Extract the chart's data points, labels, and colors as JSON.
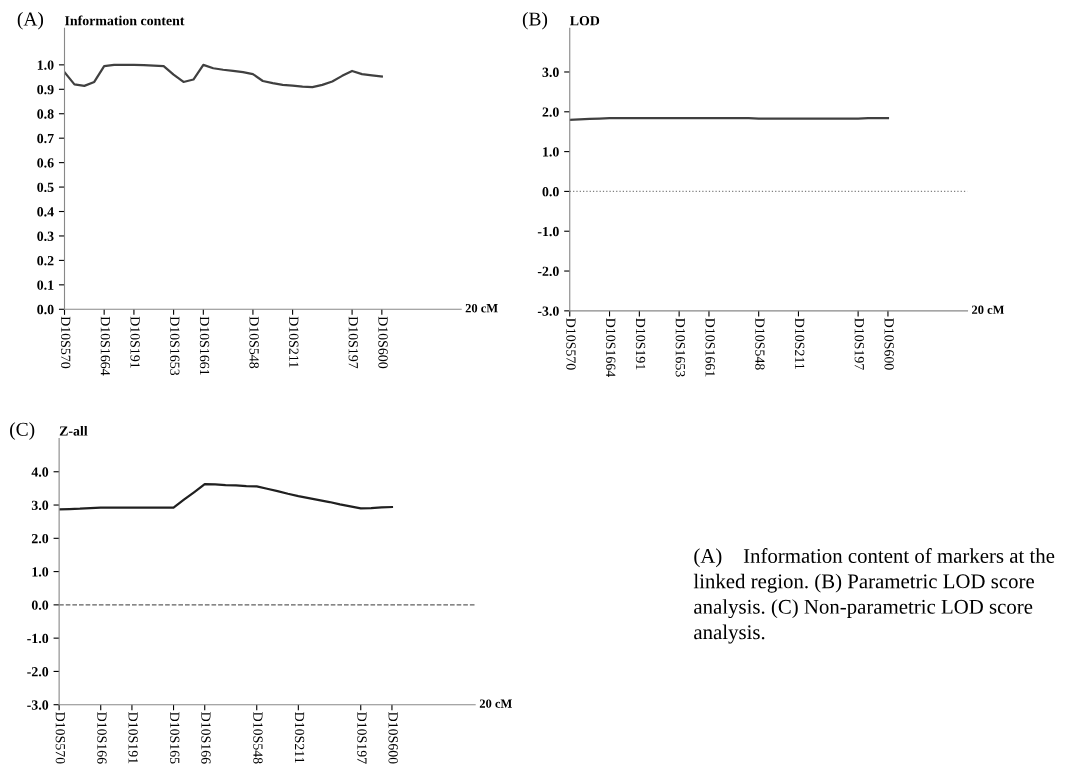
{
  "chart_data": [
    {
      "type": "line",
      "title": "(A)",
      "ylabel": "Information content",
      "xlabel": "20 cM",
      "categories": [
        "D10S570",
        null,
        null,
        null,
        "D10S1664",
        null,
        null,
        "D10S191",
        null,
        null,
        null,
        "D10S1653",
        null,
        null,
        "D10S1661",
        null,
        null,
        null,
        null,
        "D10S548",
        null,
        null,
        null,
        "D10S211",
        null,
        null,
        null,
        null,
        null,
        "D10S197",
        null,
        null,
        "D10S600",
        null,
        null,
        null,
        null,
        null,
        null,
        null,
        null
      ],
      "series": [
        {
          "color": "#404040",
          "values": [
            0.97,
            0.92,
            0.914,
            0.93,
            0.995,
            1.0,
            1.0,
            1.0,
            0.999,
            0.997,
            0.995,
            0.96,
            0.93,
            0.94,
            1.0,
            0.986,
            0.98,
            0.975,
            0.97,
            0.962,
            0.934,
            0.925,
            0.918,
            0.915,
            0.911,
            0.909,
            0.918,
            0.932,
            0.955,
            0.975,
            0.962,
            0.957,
            0.952,
            null,
            null,
            null,
            null,
            null,
            null,
            null,
            null
          ]
        }
      ],
      "ylim": [
        0,
        1.15
      ],
      "yticks": [
        {
          "value": 0,
          "label": "0.0"
        },
        0.1,
        0.2,
        0.3,
        0.4,
        0.5,
        0.6,
        0.7,
        0.8,
        0.9,
        {
          "value": 1,
          "label": "1.0"
        }
      ],
      "marker": "none",
      "line_style": "solid"
    },
    {
      "type": "line",
      "title": "(B)",
      "ylabel": "LOD",
      "xlabel": "20 cM",
      "categories": [
        "D10S570",
        null,
        null,
        null,
        "D10S1664",
        null,
        null,
        "D10S191",
        null,
        null,
        null,
        "D10S1653",
        null,
        null,
        "D10S1661",
        null,
        null,
        null,
        null,
        "D10S548",
        null,
        null,
        null,
        "D10S211",
        null,
        null,
        null,
        null,
        null,
        "D10S197",
        null,
        null,
        "D10S600",
        null,
        null,
        null,
        null,
        null,
        null,
        null,
        null
      ],
      "series": [
        {
          "color": "#404040",
          "values": [
            1.8,
            1.81,
            1.82,
            1.83,
            1.84,
            1.84,
            1.84,
            1.84,
            1.84,
            1.84,
            1.84,
            1.84,
            1.84,
            1.84,
            1.84,
            1.84,
            1.84,
            1.84,
            1.84,
            1.83,
            1.83,
            1.83,
            1.83,
            1.83,
            1.83,
            1.83,
            1.83,
            1.83,
            1.83,
            1.83,
            1.84,
            1.84,
            1.84,
            null,
            null,
            null,
            null,
            null,
            null,
            null,
            null
          ]
        }
      ],
      "ylim": [
        -3,
        4.1
      ],
      "yticks": [
        {
          "value": -3,
          "label": "-3.0"
        },
        {
          "value": -2,
          "label": "-2.0"
        },
        {
          "value": -1,
          "label": "-1.0"
        },
        {
          "value": 0,
          "label": "0.0"
        },
        {
          "value": 1,
          "label": "1.0"
        },
        {
          "value": 2,
          "label": "2.0"
        },
        {
          "value": 3,
          "label": "3.0"
        }
      ],
      "ref_lines": [
        {
          "axis": "y",
          "value": 0,
          "color": "#808080",
          "line_style": "dotted"
        }
      ],
      "marker": "none",
      "line_style": "solid"
    },
    {
      "type": "line",
      "title": "(C)",
      "ylabel": "Z-all",
      "xlabel": "20 cM",
      "categories": [
        "D10S570",
        null,
        null,
        null,
        "D10S166",
        null,
        null,
        "D10S191",
        null,
        null,
        null,
        "D10S165",
        null,
        null,
        "D10S166",
        null,
        null,
        null,
        null,
        "D10S548",
        null,
        null,
        null,
        "D10S211",
        null,
        null,
        null,
        null,
        null,
        "D10S197",
        null,
        null,
        "D10S600",
        null,
        null,
        null,
        null,
        null,
        null,
        null,
        null
      ],
      "series": [
        {
          "color": "#202020",
          "values": [
            2.87,
            2.88,
            2.89,
            2.91,
            2.92,
            2.92,
            2.92,
            2.92,
            2.92,
            2.92,
            2.92,
            2.92,
            3.16,
            3.39,
            3.63,
            3.62,
            3.6,
            3.59,
            3.57,
            3.56,
            3.49,
            3.42,
            3.34,
            3.27,
            3.21,
            3.15,
            3.09,
            3.02,
            2.96,
            2.9,
            2.91,
            2.93,
            2.94,
            null,
            null,
            null,
            null,
            null,
            null,
            null,
            null
          ]
        }
      ],
      "ylim": [
        -3,
        5
      ],
      "yticks": [
        {
          "value": -3,
          "label": "-3.0"
        },
        {
          "value": -2,
          "label": "-2.0"
        },
        {
          "value": -1,
          "label": "-1.0"
        },
        {
          "value": 0,
          "label": "0.0"
        },
        {
          "value": 1,
          "label": "1.0"
        },
        {
          "value": 2,
          "label": "2.0"
        },
        {
          "value": 3,
          "label": "3.0"
        },
        {
          "value": 4,
          "label": "4.0"
        }
      ],
      "ref_lines": [
        {
          "axis": "y",
          "value": 0,
          "color": "#606060",
          "line_style": "dashed"
        }
      ],
      "annotations": [
        "(A)    Information content of markers at the linked region. (B) Parametric LOD score analysis. (C) Non-parametric LOD score analysis."
      ],
      "marker": "none",
      "line_style": "solid"
    }
  ]
}
